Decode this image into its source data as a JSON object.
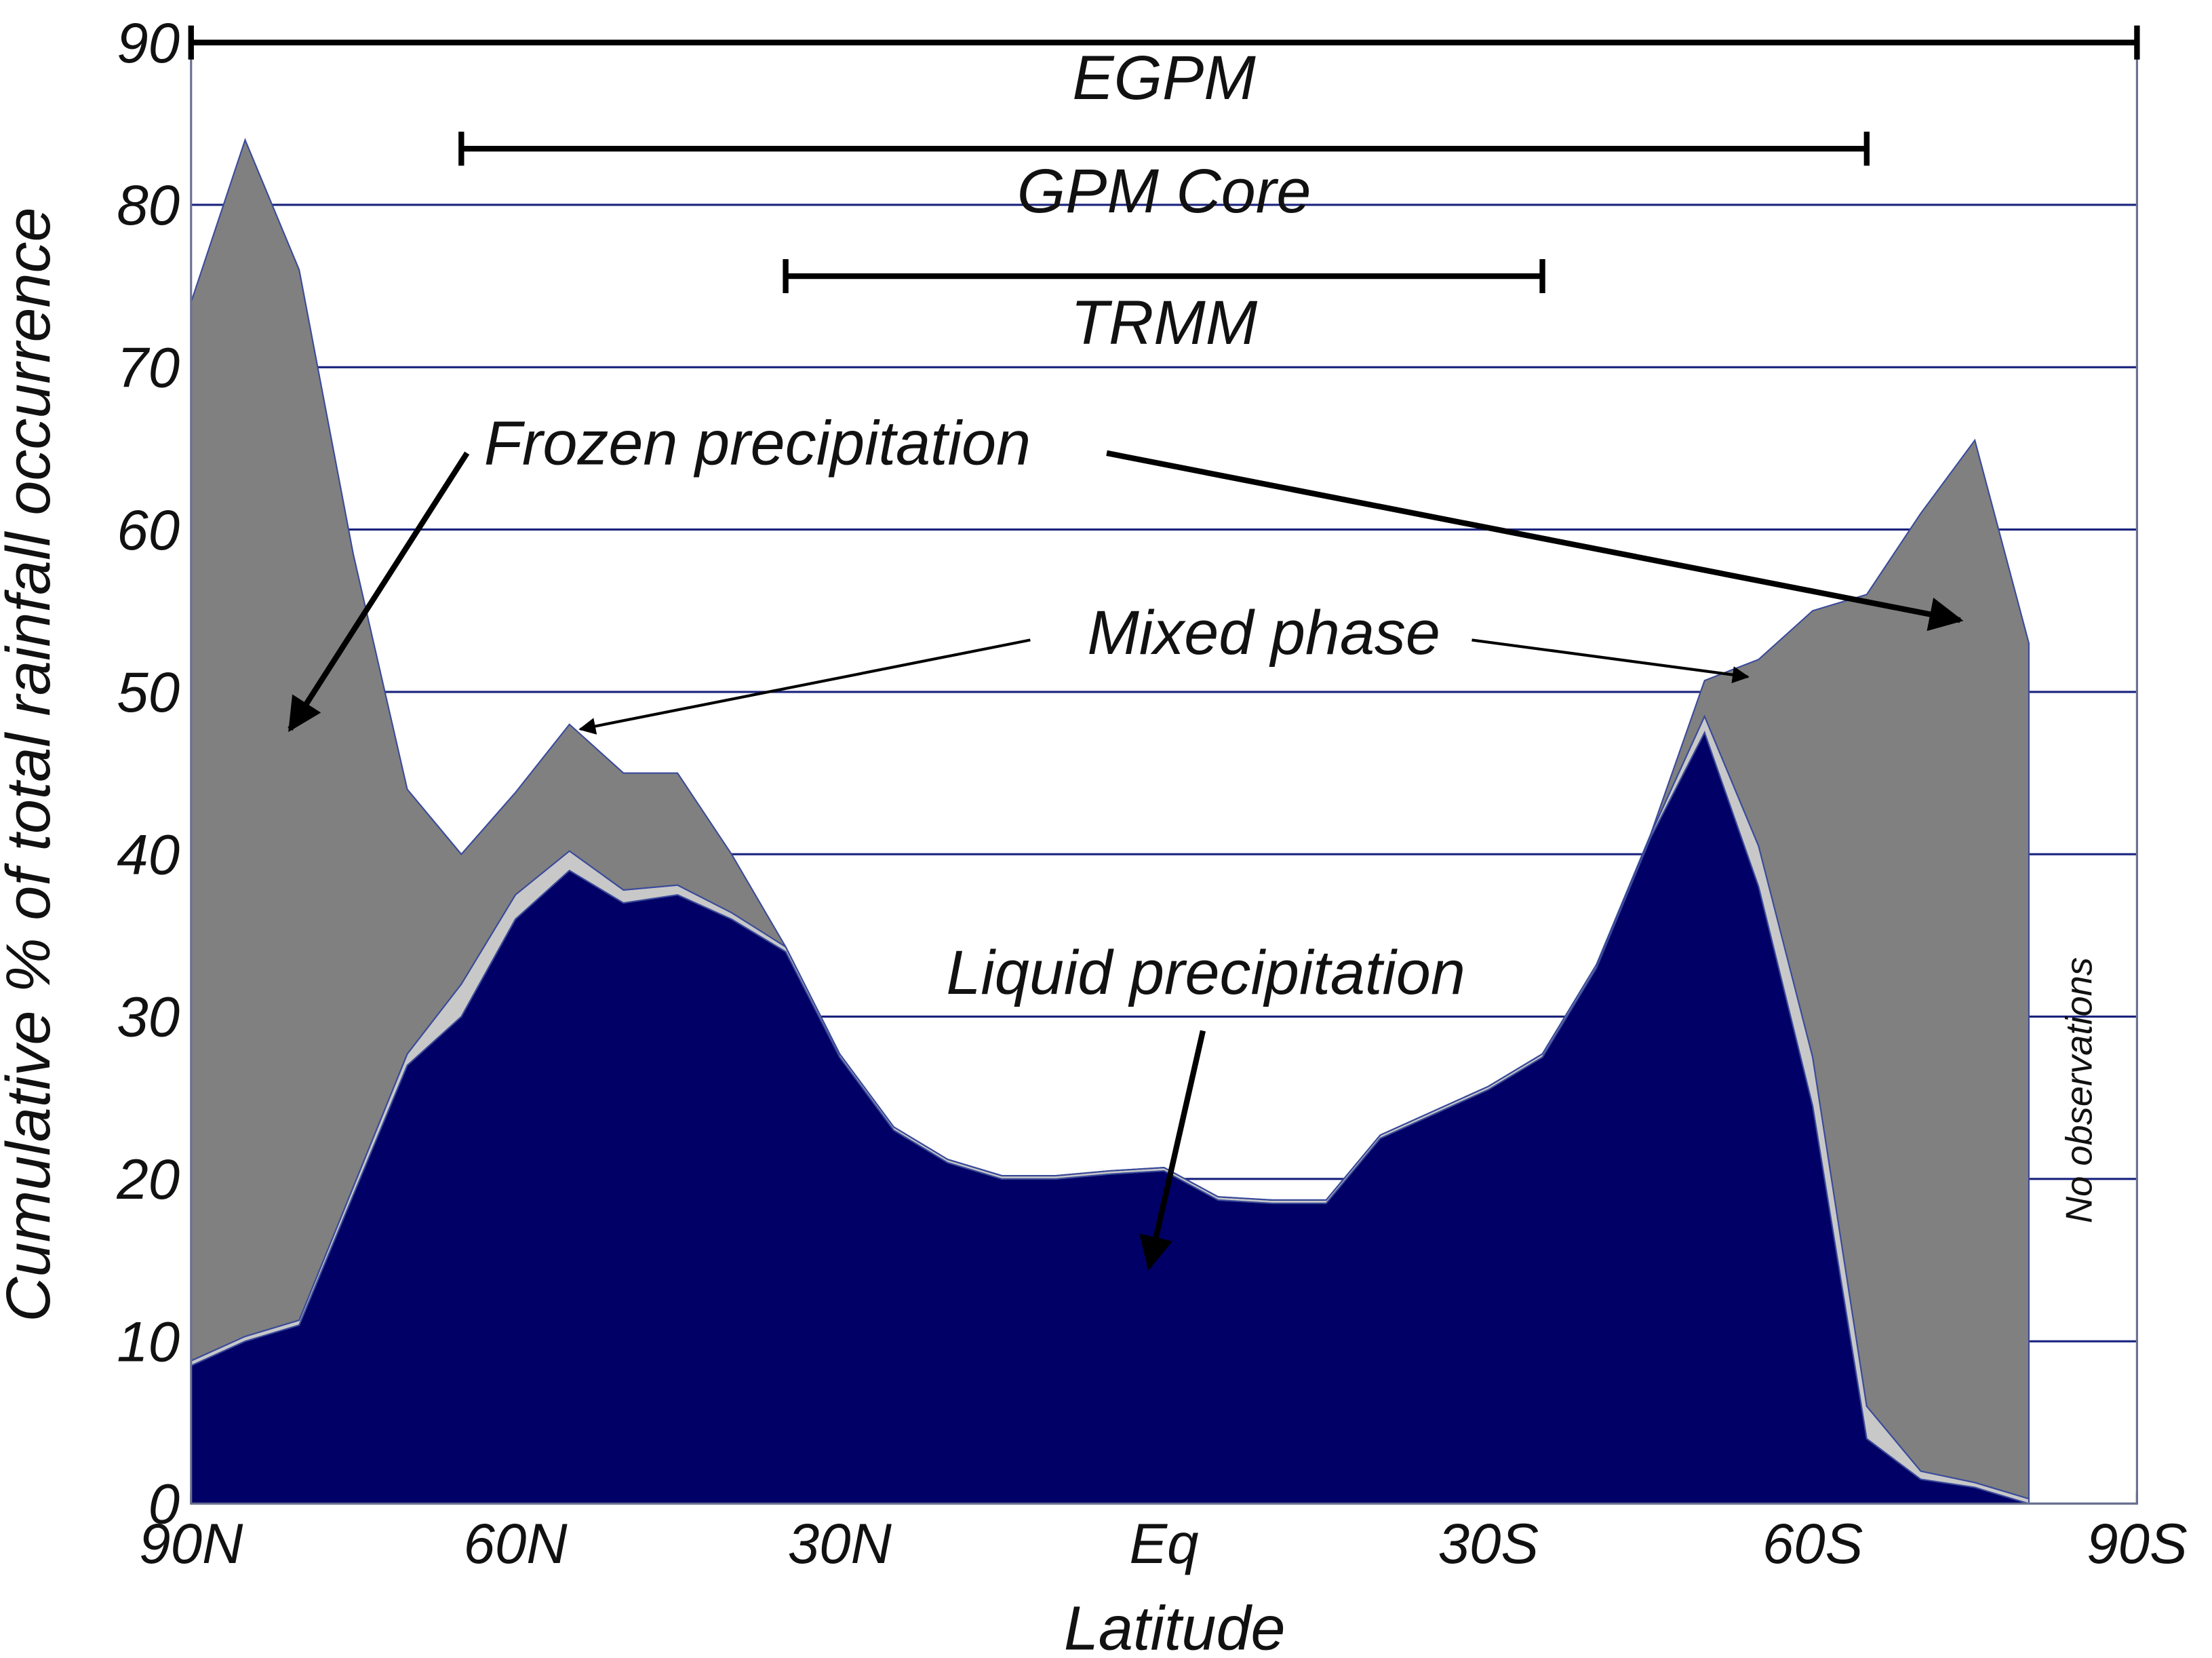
{
  "chart_data": {
    "type": "stacked_area",
    "y_label": "Cumulative % of total rainfall occurrence",
    "x_label": "Latitude",
    "x": [
      90,
      85,
      80,
      75,
      70,
      65,
      60,
      55,
      50,
      45,
      40,
      35,
      30,
      25,
      20,
      15,
      10,
      5,
      0,
      -5,
      -10,
      -15,
      -20,
      -25,
      -30,
      -35,
      -40,
      -45,
      -50,
      -55,
      -60,
      -65,
      -70,
      -75,
      -80
    ],
    "series": [
      {
        "name": "Liquid precipitation",
        "color": "#000066",
        "values": [
          8.5,
          10,
          11,
          19,
          27,
          30,
          36,
          39,
          37,
          37.5,
          36,
          34,
          27.5,
          23,
          21,
          20,
          20,
          20.3,
          20.5,
          18.7,
          18.5,
          18.5,
          22.5,
          24,
          25.5,
          27.5,
          33,
          41,
          47.5,
          38,
          24.5,
          4,
          1.5,
          1,
          0
        ]
      },
      {
        "name": "Mixed phase",
        "color": "#c8c8c8",
        "values": [
          0.3,
          0.3,
          0.3,
          0.5,
          0.7,
          2,
          1.5,
          1.2,
          0.8,
          0.6,
          0.4,
          0.3,
          0.2,
          0.2,
          0.2,
          0.2,
          0.2,
          0.2,
          0.2,
          0.2,
          0.2,
          0.2,
          0.2,
          0.2,
          0.2,
          0.2,
          0.2,
          0.2,
          1,
          2.5,
          3,
          2,
          0.5,
          0.3,
          0.3
        ]
      },
      {
        "name": "Frozen precipitation",
        "color": "#808080",
        "values": [
          65.2,
          73.7,
          64.7,
          39,
          16.3,
          8,
          6.3,
          7.8,
          7.2,
          6.9,
          3.6,
          0,
          0,
          0,
          0,
          0,
          0,
          0,
          0,
          0,
          0,
          0,
          0,
          0,
          0,
          0,
          0,
          0,
          2.2,
          11.5,
          27.5,
          50,
          59,
          64.2,
          52.7
        ]
      }
    ],
    "xlim": [
      90,
      -90
    ],
    "ylim": [
      0,
      90
    ],
    "xticks": [
      {
        "value": 90,
        "label": "90N"
      },
      {
        "value": 60,
        "label": "60N"
      },
      {
        "value": 30,
        "label": "30N"
      },
      {
        "value": 0,
        "label": "Eq"
      },
      {
        "value": -30,
        "label": "30S"
      },
      {
        "value": -60,
        "label": "60S"
      },
      {
        "value": -90,
        "label": "90S"
      }
    ],
    "yticks": [
      0,
      10,
      20,
      30,
      40,
      50,
      60,
      70,
      80,
      90
    ],
    "grid": true,
    "grid_color": "#1a237e",
    "ranges": [
      {
        "label": "EGPM",
        "from": 90,
        "to": -90
      },
      {
        "label": "GPM Core",
        "from": 65,
        "to": -65
      },
      {
        "label": "TRMM",
        "from": 35,
        "to": -35
      }
    ],
    "annotations": [
      "No observations"
    ]
  }
}
